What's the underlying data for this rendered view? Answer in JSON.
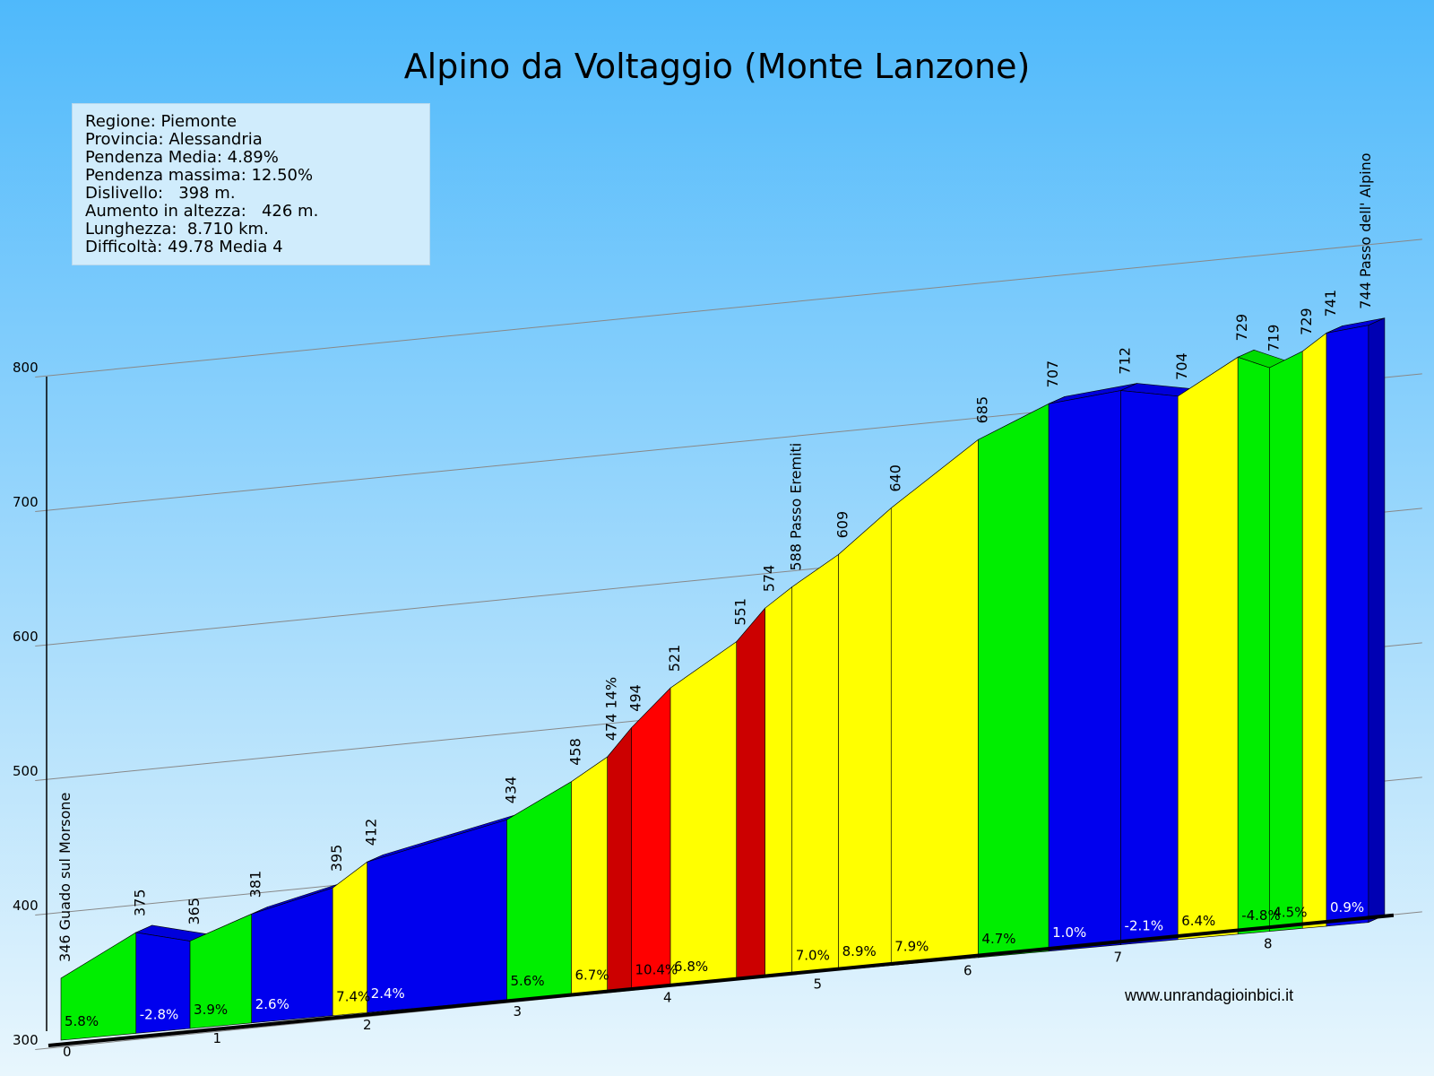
{
  "title": "Alpino da Voltaggio (Monte Lanzone)",
  "info": [
    "Regione: Piemonte",
    "Provincia: Alessandria",
    "Pendenza Media: 4.89%",
    "Pendenza massima: 12.50%",
    "Dislivello:   398 m.",
    "Aumento in altezza:   426 m.",
    "Lunghezza:  8.710 km.",
    "Difficoltà: 49.78 Media 4"
  ],
  "source": "www.unrandagioinbici.it",
  "colors": {
    "green": "#00ee00",
    "blue": "#0000ee",
    "yellow": "#ffff00",
    "red": "#ff0000",
    "darkred": "#cc0000",
    "sky_top": "#4fb9fb",
    "sky_bottom": "#e8f6fd"
  },
  "chart_data": {
    "type": "area",
    "xlabel": "",
    "ylabel": "",
    "ylim": [
      300,
      800
    ],
    "xlim": [
      0,
      8.71
    ],
    "y_ticks": [
      "300",
      "400",
      "500",
      "600",
      "700",
      "800"
    ],
    "x_ticks": [
      "0",
      "1",
      "2",
      "3",
      "4",
      "5",
      "6",
      "7",
      "8"
    ],
    "points": [
      {
        "x": 0.0,
        "y": 346,
        "label": "346 Guado sul Morsone",
        "rotate": true
      },
      {
        "x": 0.5,
        "y": 375,
        "label": "375"
      },
      {
        "x": 0.86,
        "y": 365,
        "label": "365"
      },
      {
        "x": 1.27,
        "y": 381,
        "label": "381"
      },
      {
        "x": 1.81,
        "y": 395,
        "label": "395"
      },
      {
        "x": 2.04,
        "y": 412,
        "label": "412"
      },
      {
        "x": 2.97,
        "y": 434,
        "label": "434"
      },
      {
        "x": 3.4,
        "y": 458,
        "label": "458"
      },
      {
        "x": 3.64,
        "y": 474,
        "label": "474 14%"
      },
      {
        "x": 3.8,
        "y": 494,
        "label": "494"
      },
      {
        "x": 4.06,
        "y": 521,
        "label": "521"
      },
      {
        "x": 4.5,
        "y": 551,
        "label": "551"
      },
      {
        "x": 4.69,
        "y": 574,
        "label": "574"
      },
      {
        "x": 4.87,
        "y": 588,
        "label": "588 Passo Eremiti"
      },
      {
        "x": 5.18,
        "y": 609,
        "label": "609"
      },
      {
        "x": 5.53,
        "y": 640,
        "label": "640"
      },
      {
        "x": 6.11,
        "y": 685,
        "label": "685"
      },
      {
        "x": 6.58,
        "y": 707,
        "label": "707"
      },
      {
        "x": 7.06,
        "y": 712,
        "label": "712"
      },
      {
        "x": 7.44,
        "y": 704,
        "label": "704"
      },
      {
        "x": 7.84,
        "y": 729,
        "label": "729"
      },
      {
        "x": 8.05,
        "y": 719,
        "label": "719"
      },
      {
        "x": 8.27,
        "y": 729,
        "label": "729"
      },
      {
        "x": 8.43,
        "y": 741,
        "label": "741"
      },
      {
        "x": 8.71,
        "y": 744,
        "label": "744 Passo dell' Alpino",
        "rotate": true
      }
    ],
    "segments": [
      {
        "grade": "5.8%",
        "color": "green"
      },
      {
        "grade": "-2.8%",
        "color": "blue"
      },
      {
        "grade": "3.9%",
        "color": "green"
      },
      {
        "grade": "2.6%",
        "color": "blue"
      },
      {
        "grade": "7.4%",
        "color": "yellow"
      },
      {
        "grade": "2.4%",
        "color": "blue"
      },
      {
        "grade": "5.6%",
        "color": "green"
      },
      {
        "grade": "6.7%",
        "color": "yellow"
      },
      {
        "grade": "",
        "color": "darkred"
      },
      {
        "grade": "10.4%",
        "color": "red"
      },
      {
        "grade": "6.8%",
        "color": "yellow"
      },
      {
        "grade": "",
        "color": "darkred"
      },
      {
        "grade": "",
        "color": "yellow"
      },
      {
        "grade": "7.0%",
        "color": "yellow"
      },
      {
        "grade": "8.9%",
        "color": "yellow"
      },
      {
        "grade": "7.9%",
        "color": "yellow"
      },
      {
        "grade": "4.7%",
        "color": "green"
      },
      {
        "grade": "1.0%",
        "color": "blue"
      },
      {
        "grade": "-2.1%",
        "color": "blue"
      },
      {
        "grade": "6.4%",
        "color": "yellow"
      },
      {
        "grade": "-4.8%",
        "color": "green"
      },
      {
        "grade": "4.5%",
        "color": "green"
      },
      {
        "grade": "",
        "color": "yellow"
      },
      {
        "grade": "0.9%",
        "color": "blue"
      }
    ]
  }
}
